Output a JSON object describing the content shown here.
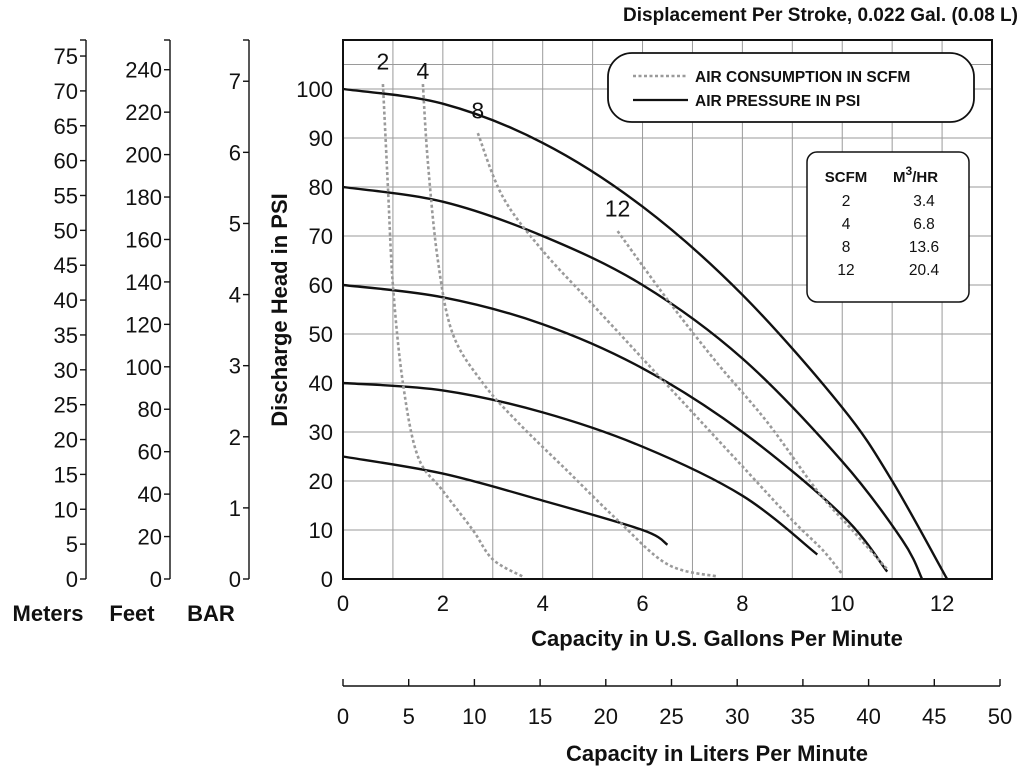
{
  "chart_data": {
    "type": "line",
    "title": "Displacement Per Stroke, 0.022 Gal. (0.08 L)",
    "xlabel": "Capacity in U.S. Gallons Per Minute",
    "ylabel": "Discharge Head in PSI",
    "xlim": [
      0,
      13
    ],
    "ylim": [
      0,
      110
    ],
    "grid": true,
    "x_ticks": [
      0,
      2,
      4,
      6,
      8,
      10,
      12
    ],
    "y_ticks": [
      0,
      10,
      20,
      30,
      40,
      50,
      60,
      70,
      80,
      90,
      100
    ],
    "secondary_x_axis": {
      "label": "Capacity in Liters Per Minute",
      "ticks": [
        0,
        5,
        10,
        15,
        20,
        25,
        30,
        35,
        40,
        45,
        50
      ]
    },
    "left_scales": [
      {
        "name": "Meters",
        "ticks": [
          0,
          5,
          10,
          15,
          20,
          25,
          30,
          35,
          40,
          45,
          50,
          55,
          60,
          65,
          70,
          75
        ],
        "max": 77.3
      },
      {
        "name": "Feet",
        "ticks": [
          0,
          20,
          40,
          60,
          80,
          100,
          120,
          140,
          160,
          180,
          200,
          220,
          240
        ],
        "max": 254
      },
      {
        "name": "BAR",
        "ticks": [
          0,
          1,
          2,
          3,
          4,
          5,
          6,
          7
        ],
        "max": 7.58
      }
    ],
    "legend": {
      "position": "top-right",
      "entries": [
        {
          "label": "AIR CONSUMPTION IN SCFM",
          "style": "dotted",
          "color": "#9a9a9a"
        },
        {
          "label": "AIR PRESSURE IN PSI",
          "style": "solid",
          "color": "#111111"
        }
      ]
    },
    "pressure_series": [
      {
        "points": [
          [
            0,
            100
          ],
          [
            2,
            97
          ],
          [
            4,
            89
          ],
          [
            6,
            76
          ],
          [
            8,
            58
          ],
          [
            10,
            35
          ],
          [
            11,
            20
          ],
          [
            12.1,
            0
          ]
        ]
      },
      {
        "points": [
          [
            0,
            80
          ],
          [
            2,
            77
          ],
          [
            4,
            70
          ],
          [
            6,
            60
          ],
          [
            8,
            45
          ],
          [
            10,
            24
          ],
          [
            11.2,
            8
          ],
          [
            11.6,
            0
          ]
        ]
      },
      {
        "points": [
          [
            0,
            60
          ],
          [
            2,
            57.5
          ],
          [
            4,
            52
          ],
          [
            6,
            43
          ],
          [
            8,
            30
          ],
          [
            10,
            13
          ],
          [
            10.9,
            1.5
          ]
        ]
      },
      {
        "points": [
          [
            0,
            40
          ],
          [
            2,
            38.5
          ],
          [
            4,
            34
          ],
          [
            6,
            27
          ],
          [
            8,
            17
          ],
          [
            9.5,
            5
          ]
        ]
      },
      {
        "points": [
          [
            0,
            25
          ],
          [
            2,
            21.5
          ],
          [
            4,
            16
          ],
          [
            6,
            10
          ],
          [
            6.5,
            7
          ]
        ]
      }
    ],
    "air_series": [
      {
        "name": "2",
        "points": [
          [
            0.8,
            101
          ],
          [
            0.9,
            80
          ],
          [
            1.0,
            60
          ],
          [
            1.2,
            40
          ],
          [
            1.5,
            25
          ],
          [
            2.0,
            18
          ],
          [
            2.6,
            10
          ],
          [
            3.0,
            4
          ],
          [
            3.6,
            0.5
          ]
        ]
      },
      {
        "name": "4",
        "points": [
          [
            1.6,
            101
          ],
          [
            1.7,
            85
          ],
          [
            1.9,
            65
          ],
          [
            2.2,
            50
          ],
          [
            2.8,
            40
          ],
          [
            3.5,
            32
          ],
          [
            4.5,
            22
          ],
          [
            5.5,
            12
          ],
          [
            6.5,
            3
          ],
          [
            7.5,
            0.5
          ]
        ]
      },
      {
        "name": "8",
        "points": [
          [
            2.7,
            91
          ],
          [
            3.2,
            78
          ],
          [
            4.0,
            67
          ],
          [
            5.0,
            56
          ],
          [
            6.0,
            45
          ],
          [
            7.0,
            34
          ],
          [
            8.0,
            23
          ],
          [
            9.0,
            12
          ],
          [
            9.6,
            6
          ],
          [
            10.0,
            1
          ]
        ]
      },
      {
        "name": "12",
        "points": [
          [
            5.5,
            71
          ],
          [
            6.5,
            57
          ],
          [
            7.5,
            44
          ],
          [
            8.5,
            32
          ],
          [
            9.5,
            18
          ],
          [
            10.2,
            10
          ],
          [
            10.9,
            2
          ]
        ]
      }
    ],
    "annotations": [
      {
        "text": "2",
        "x": 0.8,
        "y": 104
      },
      {
        "text": "4",
        "x": 1.6,
        "y": 102
      },
      {
        "text": "8",
        "x": 2.7,
        "y": 94
      },
      {
        "text": "12",
        "x": 5.5,
        "y": 74
      }
    ],
    "table": {
      "headers": [
        "SCFM",
        "M3/HR"
      ],
      "rows": [
        [
          "2",
          "3.4"
        ],
        [
          "4",
          "6.8"
        ],
        [
          "8",
          "13.6"
        ],
        [
          "12",
          "20.4"
        ]
      ]
    }
  }
}
